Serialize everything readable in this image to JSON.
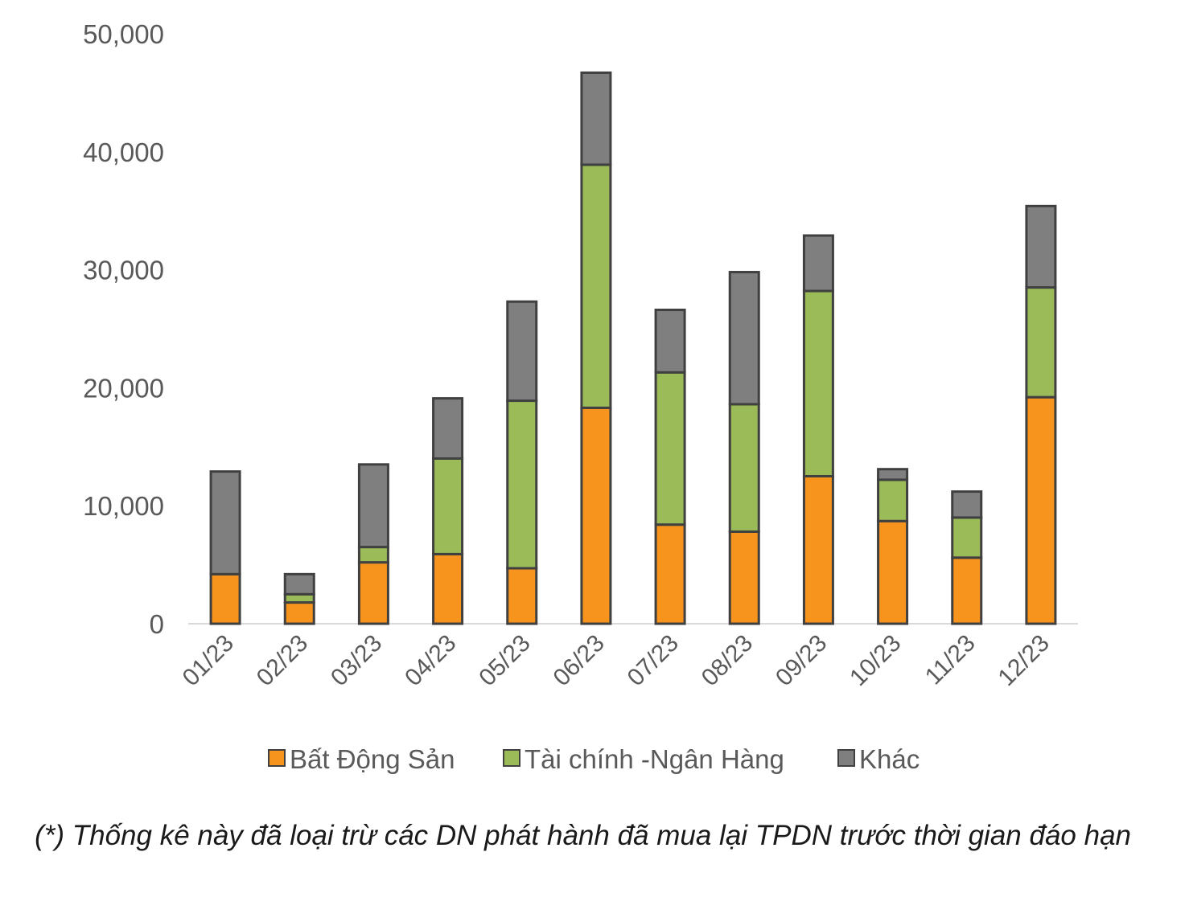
{
  "chart_data": {
    "type": "bar",
    "stacked": true,
    "categories": [
      "01/23",
      "02/23",
      "03/23",
      "04/23",
      "05/23",
      "06/23",
      "07/23",
      "08/23",
      "09/23",
      "10/23",
      "11/23",
      "12/23"
    ],
    "series": [
      {
        "name": "Bất Động Sản",
        "color": "#F7941D",
        "values": [
          4200,
          1800,
          5200,
          5900,
          4700,
          18300,
          8400,
          7800,
          12500,
          8700,
          5600,
          19200
        ]
      },
      {
        "name": "Tài chính -Ngân Hàng",
        "color": "#9BBB59",
        "values": [
          0,
          700,
          1300,
          8100,
          14200,
          20600,
          12900,
          10800,
          15700,
          3500,
          3400,
          9300
        ]
      },
      {
        "name": "Khác",
        "color": "#7F7F7F",
        "values": [
          8700,
          1700,
          7000,
          5100,
          8400,
          7800,
          5300,
          11200,
          4700,
          900,
          2200,
          6900
        ]
      }
    ],
    "ylim": [
      0,
      50000
    ],
    "yticks": [
      "0",
      "10,000",
      "20,000",
      "30,000",
      "40,000",
      "50,000"
    ],
    "grid": false,
    "legend": "bottom",
    "footnote": "(*) Thống kê này đã loại trừ các DN phát hành đã mua lại TPDN trước thời gian đáo hạn"
  }
}
